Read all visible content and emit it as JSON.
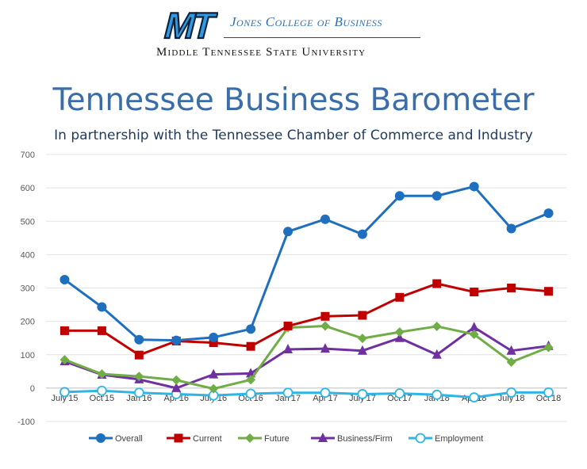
{
  "header": {
    "logo_text": "MT",
    "college_name": "Jones College of Business",
    "university_name": "Middle Tennessee State University"
  },
  "title": "Tennessee Business Barometer",
  "subtitle": "In partnership with the Tennessee Chamber of Commerce and Industry",
  "colors": {
    "accent": "#3b6ea8",
    "logo_blue": "#2e9be0"
  },
  "chart_data": {
    "type": "line",
    "categories": [
      "July'15",
      "Oct'15",
      "Jan'16",
      "Apr'16",
      "July'16",
      "Oct'16",
      "Jan'17",
      "Apr'17",
      "July'17",
      "Oct'17",
      "Jan'18",
      "Apr'18",
      "July'18",
      "Oct'18"
    ],
    "ylim": [
      -100,
      700
    ],
    "yticks": [
      -100,
      0,
      100,
      200,
      300,
      400,
      500,
      600,
      700
    ],
    "grid": true,
    "legend": "bottom",
    "series": [
      {
        "name": "Overall",
        "color": "#1f6fbf",
        "marker": "circle",
        "values": [
          325,
          243,
          145,
          143,
          152,
          177,
          469,
          506,
          461,
          576,
          576,
          604,
          478,
          524
        ]
      },
      {
        "name": "Current",
        "color": "#c00000",
        "marker": "square",
        "values": [
          172,
          172,
          99,
          141,
          136,
          125,
          186,
          215,
          218,
          272,
          313,
          288,
          300,
          290
        ]
      },
      {
        "name": "Future",
        "color": "#70ad47",
        "marker": "diamond",
        "values": [
          85,
          42,
          35,
          24,
          -2,
          25,
          181,
          186,
          149,
          168,
          185,
          161,
          78,
          122
        ]
      },
      {
        "name": "Business/Firm",
        "color": "#7030a0",
        "marker": "triangle",
        "values": [
          80,
          40,
          26,
          0,
          41,
          44,
          116,
          118,
          112,
          150,
          100,
          182,
          112,
          126
        ]
      },
      {
        "name": "Employment",
        "color": "#2eb5e6",
        "marker": "open-circle",
        "values": [
          -12,
          -8,
          -14,
          -18,
          -22,
          -17,
          -14,
          -14,
          -18,
          -16,
          -20,
          -28,
          -13,
          -13
        ]
      }
    ]
  }
}
